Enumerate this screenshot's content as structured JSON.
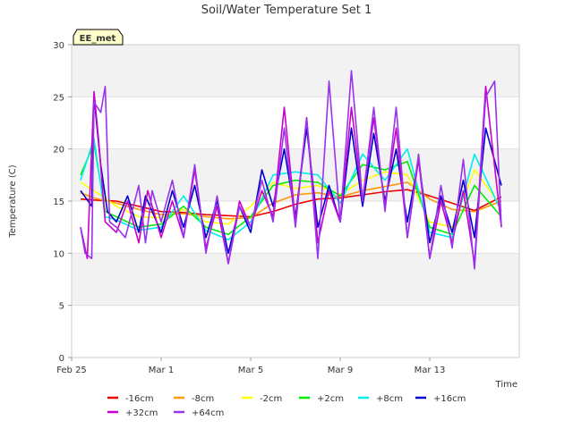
{
  "chart_data": {
    "type": "line",
    "title": "Soil/Water Temperature Set 1",
    "xlabel": "Time",
    "ylabel": "Temperature (C)",
    "badge": "EE_met",
    "ylim": [
      0,
      30
    ],
    "xlim": [
      0,
      20
    ],
    "yticks": [
      0,
      5,
      10,
      15,
      20,
      25,
      30
    ],
    "xticks": [
      {
        "v": 0,
        "label": "Feb 25"
      },
      {
        "v": 4,
        "label": "Mar 1"
      },
      {
        "v": 8,
        "label": "Mar 5"
      },
      {
        "v": 12,
        "label": "Mar 9"
      },
      {
        "v": 16,
        "label": "Mar 13"
      }
    ],
    "grid": "alternating-bands",
    "legend": "bottom",
    "series": [
      {
        "name": "-16cm",
        "color": "#ee0000",
        "x": [
          0.4,
          1,
          2,
          3,
          4,
          5,
          6,
          7,
          8,
          9,
          10,
          11,
          12,
          13,
          14,
          15,
          16,
          17,
          18,
          19.2
        ],
        "y": [
          15.2,
          15.1,
          15.0,
          14.5,
          14.0,
          13.9,
          13.7,
          13.6,
          13.5,
          14.0,
          14.7,
          15.2,
          15.3,
          15.6,
          15.9,
          16.1,
          15.5,
          14.8,
          14.1,
          15.4
        ]
      },
      {
        "name": "-8cm",
        "color": "#ff9900",
        "x": [
          0.4,
          1,
          2,
          3,
          4,
          5,
          6,
          7,
          8,
          9,
          10,
          11,
          12,
          13,
          14,
          15,
          16,
          17,
          18,
          19.2
        ],
        "y": [
          15.8,
          15.3,
          14.8,
          14.2,
          13.7,
          13.8,
          13.5,
          13.3,
          13.4,
          14.8,
          15.6,
          15.8,
          15.4,
          16.0,
          16.4,
          16.8,
          15.2,
          14.2,
          14.0,
          15.0
        ]
      },
      {
        "name": "-2cm",
        "color": "#ffff00",
        "x": [
          0.4,
          1,
          2,
          3,
          4,
          5,
          6,
          7,
          8,
          9,
          10,
          11,
          12,
          13,
          14,
          15,
          16,
          17,
          18,
          19.2
        ],
        "y": [
          16.8,
          16.0,
          14.5,
          13.5,
          13.4,
          14.2,
          13.0,
          12.8,
          14.5,
          16.8,
          16.2,
          16.5,
          15.6,
          17.0,
          17.8,
          17.5,
          13.0,
          12.5,
          18.0,
          14.5
        ]
      },
      {
        "name": "+2cm",
        "color": "#00ee00",
        "x": [
          0.4,
          1,
          1.5,
          2,
          3,
          4,
          5,
          6,
          7,
          8,
          9,
          10,
          11,
          12,
          13,
          14,
          15,
          16,
          17,
          18,
          19.2
        ],
        "y": [
          17.5,
          20.5,
          14.0,
          13.5,
          12.5,
          12.8,
          14.5,
          12.5,
          11.8,
          13.5,
          16.5,
          17.0,
          16.8,
          15.5,
          18.5,
          18.0,
          18.8,
          12.5,
          11.8,
          16.5,
          13.5
        ]
      },
      {
        "name": "+8cm",
        "color": "#00eeee",
        "x": [
          0.4,
          1,
          1.5,
          2,
          3,
          4,
          5,
          6,
          7,
          8,
          9,
          10,
          11,
          12,
          13,
          14,
          15,
          16,
          17,
          18,
          19.2
        ],
        "y": [
          17.0,
          21.0,
          13.5,
          13.2,
          12.2,
          12.5,
          15.5,
          12.2,
          11.3,
          13.0,
          17.5,
          17.8,
          17.5,
          14.8,
          19.5,
          17.0,
          20.0,
          12.0,
          11.5,
          19.5,
          14.0
        ]
      },
      {
        "name": "+16cm",
        "color": "#0000cc",
        "x": [
          0.4,
          0.9,
          1,
          1.3,
          1.6,
          2,
          2.5,
          3,
          3.3,
          4,
          4.5,
          5,
          5.5,
          6,
          6.5,
          7,
          7.5,
          8,
          8.5,
          9,
          9.5,
          10,
          10.5,
          11,
          11.5,
          12,
          12.5,
          13,
          13.5,
          14,
          14.5,
          15,
          15.5,
          16,
          16.5,
          17,
          17.5,
          18,
          18.5,
          19.2
        ],
        "y": [
          16.0,
          14.5,
          25.0,
          18.5,
          14.0,
          13.0,
          15.5,
          12.0,
          15.5,
          12.0,
          16.0,
          12.5,
          16.5,
          11.5,
          15.0,
          10.0,
          14.5,
          12.0,
          18.0,
          14.5,
          20.0,
          13.5,
          22.0,
          12.5,
          16.5,
          13.0,
          22.0,
          14.5,
          21.5,
          15.0,
          20.0,
          13.0,
          19.0,
          11.0,
          15.5,
          12.0,
          17.0,
          11.5,
          22.0,
          16.5
        ]
      },
      {
        "name": "+32cm",
        "color": "#cc00cc",
        "x": [
          0.4,
          0.7,
          1,
          1.2,
          1.5,
          2,
          2.5,
          3,
          3.4,
          4,
          4.5,
          5,
          5.5,
          6,
          6.5,
          7,
          7.5,
          8,
          8.5,
          9,
          9.5,
          10,
          10.5,
          11,
          11.5,
          12,
          12.5,
          13,
          13.5,
          14,
          14.5,
          15,
          15.5,
          16,
          16.5,
          17,
          17.5,
          18,
          18.5,
          19.2
        ],
        "y": [
          12.5,
          9.5,
          25.5,
          21.0,
          13.0,
          12.0,
          15.0,
          11.0,
          16.0,
          11.5,
          15.0,
          11.5,
          18.0,
          10.5,
          14.5,
          9.0,
          15.0,
          12.5,
          16.0,
          13.5,
          24.0,
          13.0,
          23.0,
          11.0,
          16.0,
          13.0,
          24.0,
          15.0,
          23.0,
          14.5,
          22.0,
          11.5,
          19.0,
          9.5,
          15.0,
          11.0,
          16.0,
          9.0,
          26.0,
          12.5
        ]
      },
      {
        "name": "+64cm",
        "color": "#9933ee",
        "x": [
          0.4,
          0.6,
          0.9,
          1,
          1.3,
          1.5,
          1.7,
          2,
          2.4,
          3,
          3.3,
          3.6,
          4,
          4.5,
          5,
          5.5,
          6,
          6.5,
          7,
          7.5,
          8,
          8.5,
          9,
          9.5,
          10,
          10.5,
          11,
          11.5,
          12,
          12.5,
          13,
          13.5,
          14,
          14.5,
          15,
          15.5,
          16,
          16.5,
          17,
          17.5,
          18,
          18.5,
          18.9,
          19.2
        ],
        "y": [
          12.5,
          10.0,
          9.5,
          24.5,
          23.5,
          26.0,
          13.0,
          12.5,
          11.5,
          16.5,
          11.0,
          16.0,
          13.0,
          17.0,
          11.5,
          18.5,
          10.0,
          15.5,
          9.0,
          14.5,
          12.5,
          17.0,
          13.0,
          22.0,
          12.5,
          23.0,
          9.5,
          26.5,
          13.0,
          27.5,
          15.0,
          24.0,
          14.0,
          24.0,
          11.5,
          19.5,
          9.5,
          16.5,
          10.5,
          19.0,
          8.5,
          25.0,
          26.5,
          12.5
        ]
      }
    ]
  }
}
